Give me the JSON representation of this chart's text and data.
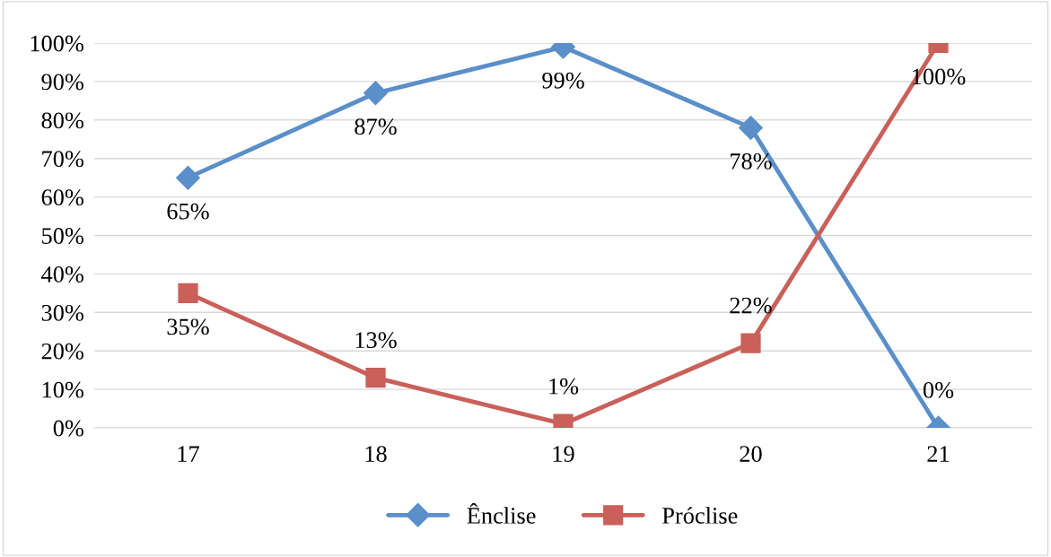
{
  "chart_data": {
    "type": "line",
    "categories": [
      "17",
      "18",
      "19",
      "20",
      "21"
    ],
    "series": [
      {
        "name": "Ênclise",
        "color": "#5b8fc9",
        "marker": "diamond",
        "values": [
          65,
          87,
          99,
          78,
          0
        ],
        "value_labels": [
          "65%",
          "87%",
          "99%",
          "78%",
          "0%"
        ]
      },
      {
        "name": "Próclise",
        "color": "#c9605a",
        "marker": "square",
        "values": [
          35,
          13,
          1,
          22,
          100
        ],
        "value_labels": [
          "35%",
          "13%",
          "1%",
          "22%",
          "100%"
        ]
      }
    ],
    "ylim": [
      0,
      100
    ],
    "yticks": [
      {
        "value": 0,
        "label": "0%"
      },
      {
        "value": 10,
        "label": "10%"
      },
      {
        "value": 20,
        "label": "20%"
      },
      {
        "value": 30,
        "label": "30%"
      },
      {
        "value": 40,
        "label": "40%"
      },
      {
        "value": 50,
        "label": "50%"
      },
      {
        "value": 60,
        "label": "60%"
      },
      {
        "value": 70,
        "label": "70%"
      },
      {
        "value": 80,
        "label": "80%"
      },
      {
        "value": 90,
        "label": "90%"
      },
      {
        "value": 100,
        "label": "100%"
      }
    ],
    "grid": "y",
    "legend": "bottom",
    "line_style": "solid"
  }
}
